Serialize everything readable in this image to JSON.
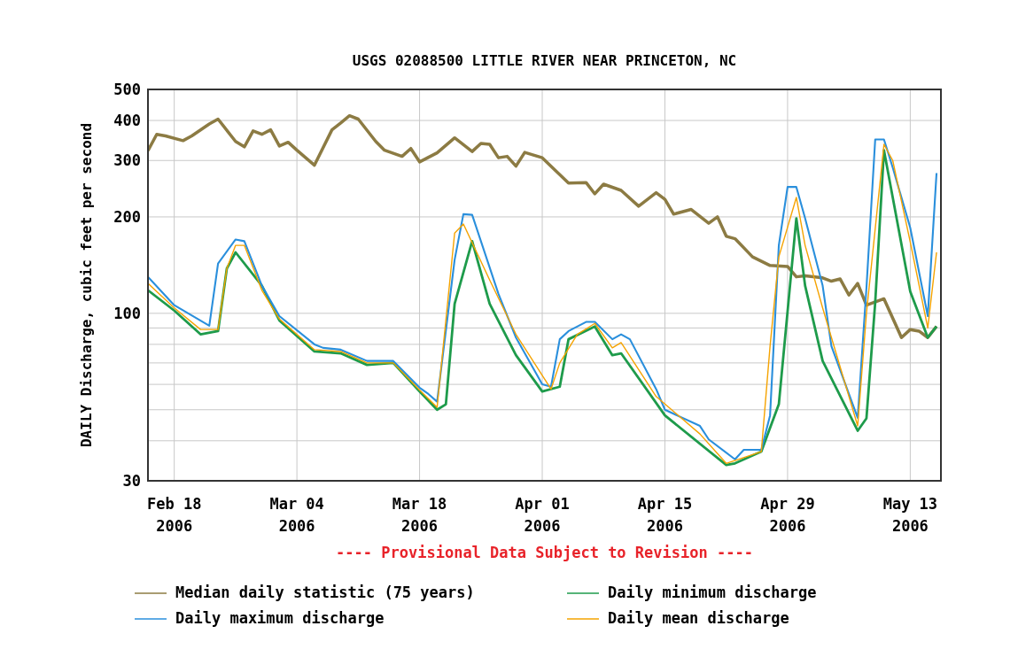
{
  "chart_data": {
    "type": "line",
    "title": "USGS 02088500 LITTLE RIVER NEAR PRINCETON, NC",
    "ylabel": "DAILY Discharge, cubic feet per second",
    "annotations": [
      "---- Provisional Data Subject to Revision ----"
    ],
    "log": true,
    "grid": true,
    "legend": "bottom",
    "marker": "none",
    "line_style": "solid",
    "xlim": [
      "2006-02-15",
      "2006-05-16T12:00"
    ],
    "xticks": [
      {
        "value": "2006-02-18",
        "label": "Feb 18\n2006"
      },
      {
        "value": "2006-03-04",
        "label": "Mar 04\n2006"
      },
      {
        "value": "2006-03-18",
        "label": "Mar 18\n2006"
      },
      {
        "value": "2006-04-01",
        "label": "Apr 01\n2006"
      },
      {
        "value": "2006-04-15",
        "label": "Apr 15\n2006"
      },
      {
        "value": "2006-04-29",
        "label": "Apr 29\n2006"
      },
      {
        "value": "2006-05-13",
        "label": "May 13\n2006"
      }
    ],
    "ylim": [
      30,
      500
    ],
    "yticks": [
      30,
      {
        "value": 40,
        "label": null
      },
      {
        "value": 50,
        "label": null
      },
      {
        "value": 60,
        "label": null
      },
      {
        "value": 70,
        "label": null
      },
      {
        "value": 80,
        "label": null
      },
      {
        "value": 90,
        "label": null
      },
      100,
      200,
      300,
      400,
      500
    ],
    "series": [
      {
        "name": "Median daily statistic (75 years)",
        "color": "#8c7b43",
        "x": [
          "2006-02-15",
          "2006-02-16",
          "2006-02-17",
          "2006-02-19",
          "2006-02-20",
          "2006-02-22",
          "2006-02-23",
          "2006-02-25",
          "2006-02-26",
          "2006-02-27",
          "2006-02-28",
          "2006-03-01",
          "2006-03-02",
          "2006-03-03",
          "2006-03-04",
          "2006-03-06",
          "2006-03-08",
          "2006-03-09",
          "2006-03-10",
          "2006-03-11",
          "2006-03-13",
          "2006-03-14",
          "2006-03-16",
          "2006-03-17",
          "2006-03-18",
          "2006-03-20",
          "2006-03-22",
          "2006-03-24",
          "2006-03-25",
          "2006-03-26",
          "2006-03-27",
          "2006-03-28",
          "2006-03-29",
          "2006-03-30",
          "2006-04-01",
          "2006-04-04",
          "2006-04-06",
          "2006-04-07",
          "2006-04-08",
          "2006-04-10",
          "2006-04-12",
          "2006-04-14",
          "2006-04-15",
          "2006-04-16",
          "2006-04-18",
          "2006-04-20",
          "2006-04-21",
          "2006-04-22",
          "2006-04-23",
          "2006-04-25",
          "2006-04-27",
          "2006-04-29",
          "2006-04-30",
          "2006-05-01",
          "2006-05-03",
          "2006-05-04",
          "2006-05-05",
          "2006-05-06",
          "2006-05-07",
          "2006-05-08",
          "2006-05-10",
          "2006-05-12",
          "2006-05-13",
          "2006-05-14",
          "2006-05-15",
          "2006-05-16"
        ],
        "values": [
          322,
          362,
          358,
          346,
          358,
          390,
          404,
          344,
          331,
          371,
          362,
          374,
          333,
          342,
          323,
          290,
          374,
          393,
          414,
          404,
          344,
          323,
          309,
          327,
          297,
          317,
          353,
          320,
          339,
          337,
          306,
          309,
          288,
          318,
          306,
          255,
          256,
          236,
          253,
          242,
          216,
          238,
          227,
          204,
          211,
          191,
          200,
          174,
          171,
          150,
          141,
          140,
          130,
          131,
          129,
          126,
          128,
          114,
          124,
          106,
          111,
          84,
          89,
          88,
          84,
          91
        ]
      },
      {
        "name": "Daily minimum discharge",
        "color": "#1e9b4b",
        "x": [
          "2006-02-15",
          "2006-02-18",
          "2006-02-21",
          "2006-02-23",
          "2006-02-24",
          "2006-02-25",
          "2006-02-28",
          "2006-03-02",
          "2006-03-06",
          "2006-03-09",
          "2006-03-12",
          "2006-03-15",
          "2006-03-18",
          "2006-03-20",
          "2006-03-21",
          "2006-03-22",
          "2006-03-24",
          "2006-03-26",
          "2006-03-29",
          "2006-04-01",
          "2006-04-03",
          "2006-04-04",
          "2006-04-07",
          "2006-04-09",
          "2006-04-10",
          "2006-04-15",
          "2006-04-22",
          "2006-04-23",
          "2006-04-26",
          "2006-04-28",
          "2006-04-30",
          "2006-05-01",
          "2006-05-03",
          "2006-05-07",
          "2006-05-08",
          "2006-05-09",
          "2006-05-10",
          "2006-05-11",
          "2006-05-13",
          "2006-05-15",
          "2006-05-16"
        ],
        "values": [
          118,
          102,
          86,
          88,
          138,
          155,
          122,
          95,
          76,
          75,
          69,
          70,
          57,
          50,
          52,
          107,
          168,
          107,
          74,
          57,
          59,
          83,
          91,
          74,
          75,
          48,
          33.6,
          34,
          37,
          52,
          198,
          122,
          71,
          43,
          47,
          108,
          323,
          230,
          117,
          84,
          91
        ]
      },
      {
        "name": "Daily maximum discharge",
        "color": "#2a8fdc",
        "x": [
          "2006-02-15",
          "2006-02-18",
          "2006-02-22",
          "2006-02-23",
          "2006-02-25",
          "2006-02-26",
          "2006-02-28",
          "2006-03-02",
          "2006-03-06",
          "2006-03-07",
          "2006-03-09",
          "2006-03-12",
          "2006-03-15",
          "2006-03-18",
          "2006-03-19",
          "2006-03-20",
          "2006-03-22",
          "2006-03-23",
          "2006-03-24",
          "2006-03-27",
          "2006-03-29",
          "2006-04-01",
          "2006-04-02",
          "2006-04-03",
          "2006-04-04",
          "2006-04-06",
          "2006-04-07",
          "2006-04-09",
          "2006-04-10",
          "2006-04-11",
          "2006-04-14",
          "2006-04-15",
          "2006-04-19",
          "2006-04-20",
          "2006-04-23",
          "2006-04-24",
          "2006-04-26",
          "2006-04-27",
          "2006-04-28",
          "2006-04-29",
          "2006-04-30",
          "2006-05-01",
          "2006-05-03",
          "2006-05-04",
          "2006-05-07",
          "2006-05-08",
          "2006-05-09",
          "2006-05-10",
          "2006-05-11",
          "2006-05-13",
          "2006-05-15",
          "2006-05-16"
        ],
        "values": [
          130,
          106,
          91.5,
          143,
          170,
          168,
          122,
          98,
          80,
          78,
          77,
          71,
          71,
          58.6,
          56,
          53,
          147,
          204,
          203,
          115,
          84,
          60,
          59,
          83,
          88,
          94,
          94,
          83,
          86,
          83,
          58,
          50,
          44.5,
          40.4,
          35,
          37.5,
          37.5,
          48,
          163,
          248,
          248,
          198,
          122,
          79,
          47.2,
          120,
          349,
          349,
          285,
          185,
          98,
          274
        ]
      },
      {
        "name": "Daily mean discharge",
        "color": "#f5a300",
        "x": [
          "2006-02-15",
          "2006-02-18",
          "2006-02-21",
          "2006-02-23",
          "2006-02-24",
          "2006-02-25",
          "2006-02-26",
          "2006-02-28",
          "2006-03-02",
          "2006-03-06",
          "2006-03-09",
          "2006-03-12",
          "2006-03-15",
          "2006-03-18",
          "2006-03-20",
          "2006-03-22",
          "2006-03-23",
          "2006-03-26",
          "2006-03-29",
          "2006-04-02",
          "2006-04-03",
          "2006-04-05",
          "2006-04-07",
          "2006-04-09",
          "2006-04-10",
          "2006-04-14",
          "2006-04-19",
          "2006-04-22",
          "2006-04-26",
          "2006-04-27",
          "2006-04-28",
          "2006-04-30",
          "2006-05-01",
          "2006-05-03",
          "2006-05-07",
          "2006-05-08",
          "2006-05-10",
          "2006-05-11",
          "2006-05-13",
          "2006-05-15",
          "2006-05-16"
        ],
        "values": [
          124,
          104,
          89,
          89,
          138,
          163,
          163,
          118,
          96,
          77,
          76,
          70,
          70,
          57.6,
          50.9,
          178,
          190,
          127,
          86,
          58,
          70,
          86,
          93,
          78,
          81,
          55,
          42,
          34,
          37,
          79,
          150,
          230,
          163,
          104,
          44.5,
          100,
          337,
          300,
          167,
          90,
          155
        ]
      }
    ]
  }
}
